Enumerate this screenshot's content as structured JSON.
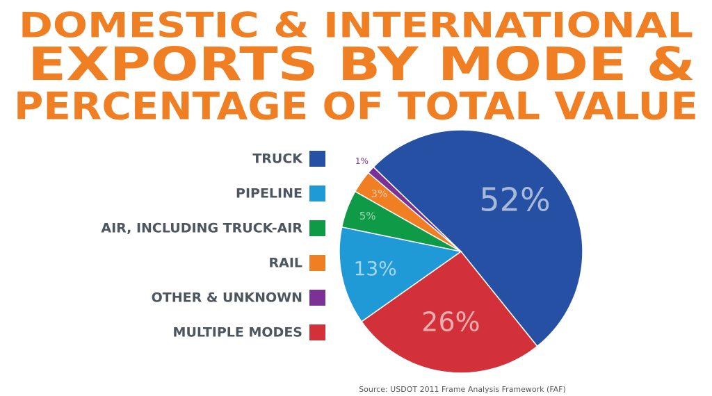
{
  "chart_data": {
    "type": "pie",
    "title": [
      "DOMESTIC & INTERNATIONAL",
      "EXPORTS BY MODE &",
      "PERCENTAGE OF TOTAL VALUE"
    ],
    "categories": [
      "TRUCK",
      "MULTIPLE MODES",
      "PIPELINE",
      "AIR, INCLUDING TRUCK-AIR",
      "RAIL",
      "OTHER & UNKNOWN"
    ],
    "values": [
      52,
      26,
      13,
      5,
      3,
      1
    ],
    "value_labels": [
      "52%",
      "26%",
      "13%",
      "5%",
      "3%",
      "1%"
    ],
    "colors": [
      "#2550a3",
      "#d3313a",
      "#1f9ad6",
      "#0f9a48",
      "#f07f24",
      "#7b3294"
    ],
    "source": "Source: USDOT 2011 Frame Analysis Framework (FAF)"
  }
}
